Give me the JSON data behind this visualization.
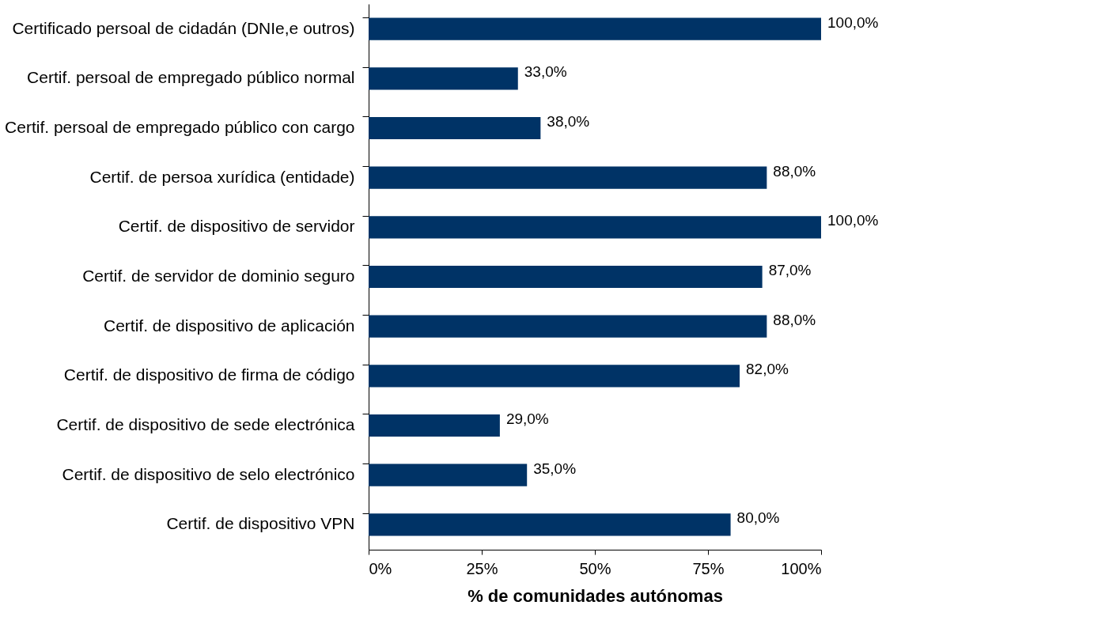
{
  "chart_data": {
    "type": "bar",
    "orientation": "horizontal",
    "xlabel": "% de comunidades autónomas",
    "categories": [
      "Certificado persoal de cidadán (DNIe,e outros)",
      "Certif. persoal de empregado público normal",
      "Certif. persoal de empregado público con cargo",
      "Certif. de persoa xurídica (entidade)",
      "Certif. de dispositivo de servidor",
      "Certif. de servidor de dominio seguro",
      "Certif. de dispositivo de aplicación",
      "Certif. de dispositivo de firma de código",
      "Certif. de dispositivo de sede electrónica",
      "Certif. de dispositivo de selo electrónico",
      "Certif. de dispositivo VPN"
    ],
    "values": [
      100,
      33,
      38,
      88,
      100,
      87,
      88,
      82,
      29,
      35,
      80
    ],
    "value_labels": [
      "100,0%",
      "33,0%",
      "38,0%",
      "88,0%",
      "100,0%",
      "87,0%",
      "88,0%",
      "82,0%",
      "29,0%",
      "35,0%",
      "80,0%"
    ],
    "color": "#003366",
    "xlim": [
      0,
      100
    ],
    "xticks": [
      {
        "value": 0,
        "label": "0%"
      },
      {
        "value": 25,
        "label": "25%"
      },
      {
        "value": 50,
        "label": "50%"
      },
      {
        "value": 75,
        "label": "75%"
      },
      {
        "value": 100,
        "label": "100%"
      }
    ],
    "grid": false
  }
}
